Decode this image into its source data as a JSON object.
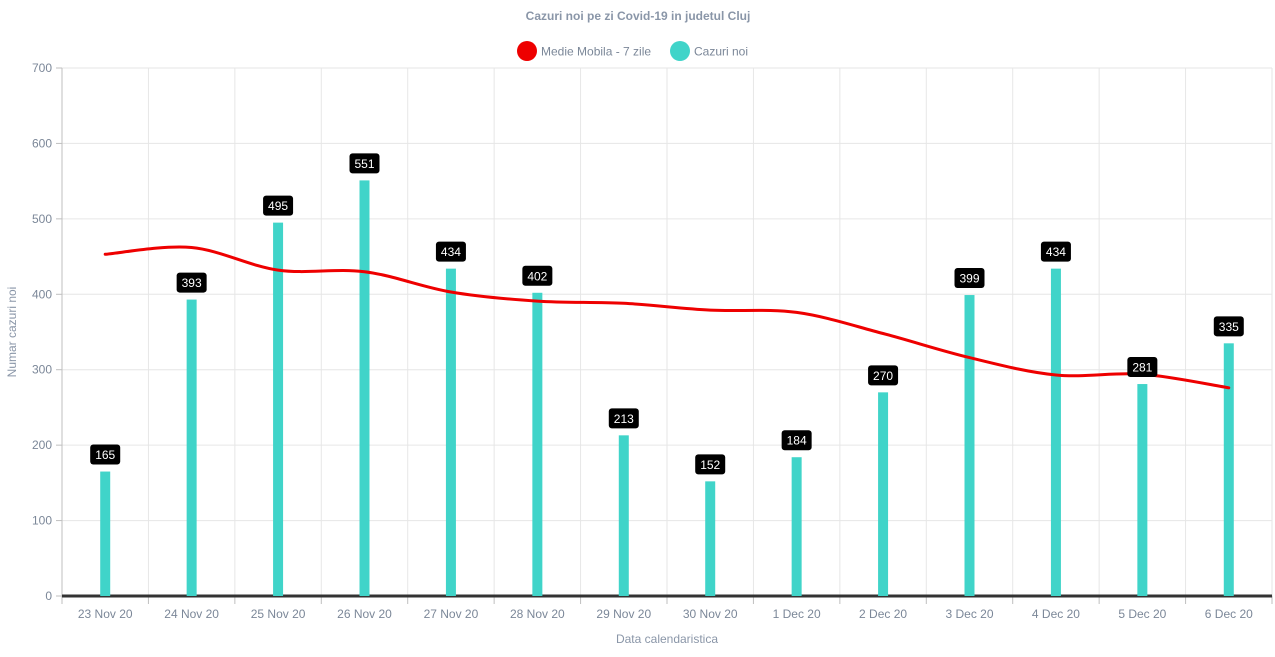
{
  "chart_data": {
    "type": "bar",
    "title": "Cazuri noi pe zi Covid-19 in judetul Cluj",
    "xlabel": "Data calendaristica",
    "ylabel": "Numar cazuri noi",
    "ylim": [
      0,
      700
    ],
    "yticks": [
      0,
      100,
      200,
      300,
      400,
      500,
      600,
      700
    ],
    "grid": true,
    "legend_position": "top",
    "categories": [
      "23 Nov 20",
      "24 Nov 20",
      "25 Nov 20",
      "26 Nov 20",
      "27 Nov 20",
      "28 Nov 20",
      "29 Nov 20",
      "30 Nov 20",
      "1 Dec 20",
      "2 Dec 20",
      "3 Dec 20",
      "4 Dec 20",
      "5 Dec 20",
      "6 Dec 20"
    ],
    "series": [
      {
        "name": "Medie Mobila - 7 zile",
        "type": "line",
        "color": "#ee0000",
        "values": [
          453,
          462,
          432,
          430,
          403,
          391,
          388,
          379,
          376,
          348,
          316,
          293,
          294,
          276
        ]
      },
      {
        "name": "Cazuri noi",
        "type": "bar",
        "color": "#40d4c9",
        "values": [
          165,
          393,
          495,
          551,
          434,
          402,
          213,
          152,
          184,
          270,
          399,
          434,
          281,
          335
        ],
        "data_labels": [
          "165",
          "393",
          "495",
          "551",
          "434",
          "402",
          "213",
          "152",
          "184",
          "270",
          "399",
          "434",
          "281",
          "335"
        ]
      }
    ]
  }
}
